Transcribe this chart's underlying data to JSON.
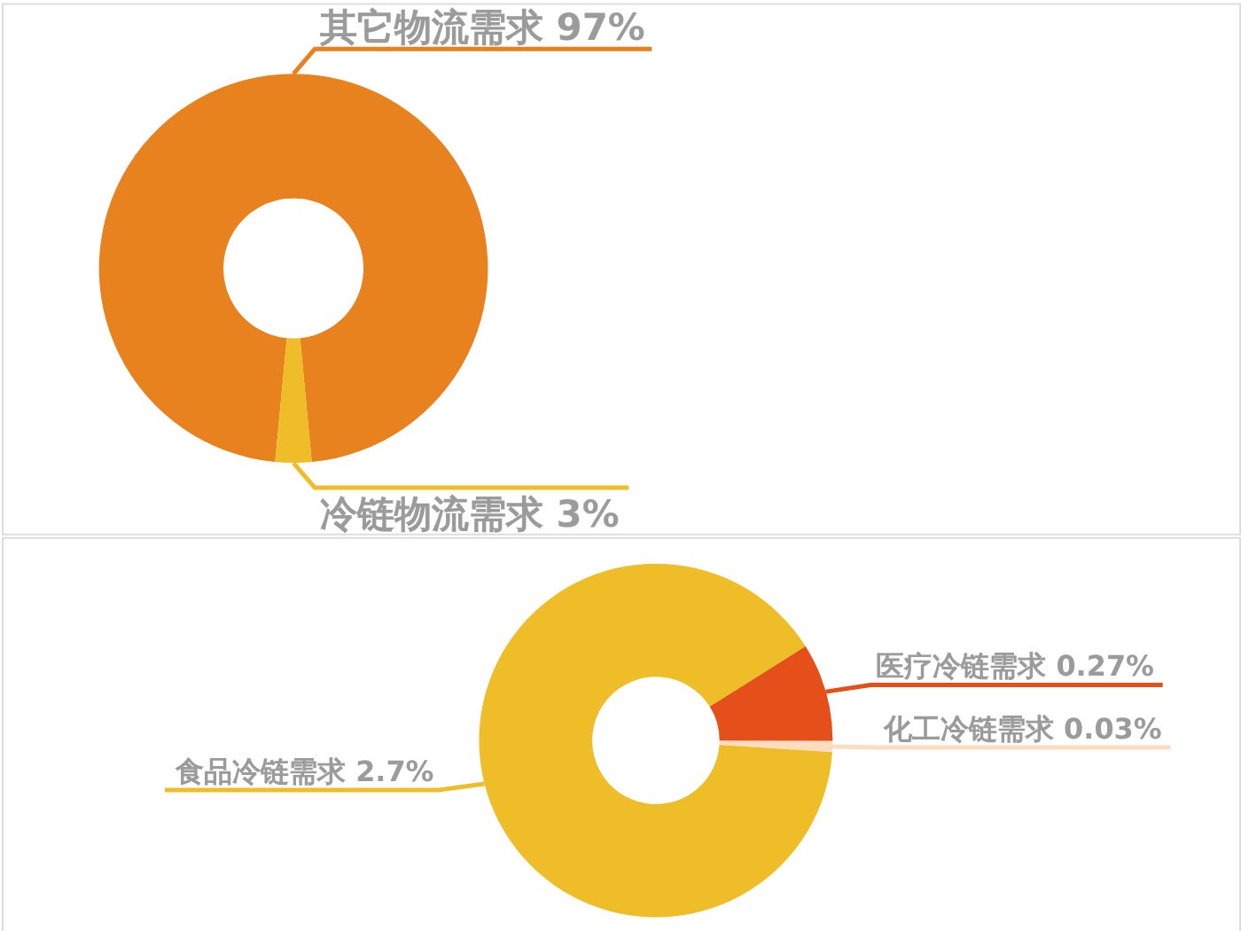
{
  "chart_data": [
    {
      "type": "donut",
      "categories": [
        "其它物流需求",
        "冷链物流需求"
      ],
      "values": [
        97,
        3
      ],
      "colors": [
        "#e8821e",
        "#eebd28"
      ],
      "value_labels": [
        "97%",
        "3%"
      ]
    },
    {
      "type": "donut",
      "categories": [
        "医疗冷链需求",
        "化工冷链需求",
        "食品冷链需求"
      ],
      "values": [
        0.27,
        0.03,
        2.7
      ],
      "colors": [
        "#e5501a",
        "#fddcc0",
        "#eebd28"
      ],
      "value_labels": [
        "0.27%",
        "0.03%",
        "2.7%"
      ]
    }
  ]
}
